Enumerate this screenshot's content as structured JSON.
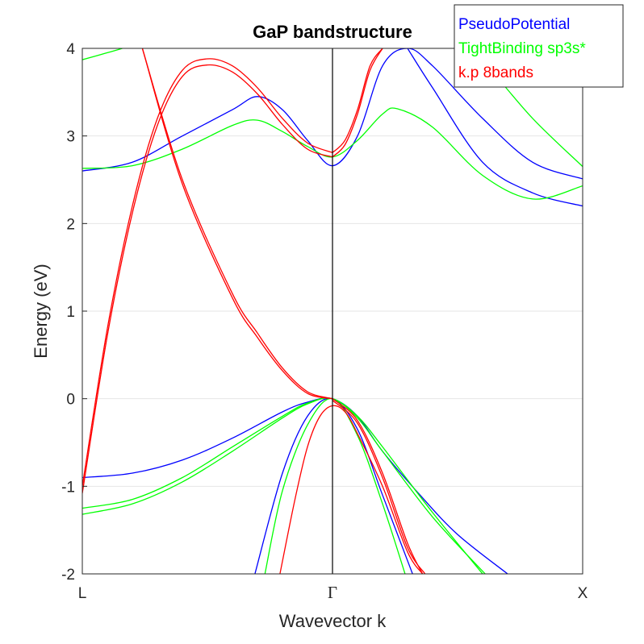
{
  "chart_data": {
    "type": "line",
    "title": "GaP bandstructure",
    "xlabel": "Wavevector k",
    "ylabel": "Energy (eV)",
    "xlim": [
      -1,
      1
    ],
    "ylim": [
      -2,
      4
    ],
    "yticks": [
      -2,
      -1,
      0,
      1,
      2,
      3,
      4
    ],
    "xticks": [
      {
        "value": -1,
        "label": "L"
      },
      {
        "value": 0,
        "label": "Γ"
      },
      {
        "value": 1,
        "label": "X"
      }
    ],
    "grid": "horizontal",
    "legend_position": "top-right",
    "series": [
      {
        "name": "PseudoPotential",
        "color": "#0000ff",
        "bands": [
          {
            "x": [
              -1,
              -0.8,
              -0.6,
              -0.4,
              -0.3,
              -0.2,
              -0.1,
              0,
              0.1,
              0.2,
              0.3,
              0.4,
              0.6,
              0.8,
              1
            ],
            "y": [
              2.6,
              2.7,
              3.0,
              3.3,
              3.45,
              3.3,
              2.95,
              2.66,
              3.0,
              3.8,
              4.0,
              3.8,
              3.2,
              2.7,
              2.51
            ]
          },
          {
            "x": [
              0.3,
              0.4,
              0.6,
              0.8,
              1
            ],
            "y": [
              4.0,
              3.55,
              2.7,
              2.35,
              2.2
            ]
          },
          {
            "x": [
              -1,
              -0.8,
              -0.6,
              -0.4,
              -0.2,
              -0.1,
              0,
              0.1,
              0.2,
              0.35,
              0.5,
              0.7
            ],
            "y": [
              -0.9,
              -0.85,
              -0.7,
              -0.45,
              -0.15,
              -0.04,
              0,
              -0.2,
              -0.6,
              -1.1,
              -1.55,
              -2.0
            ]
          },
          {
            "x": [
              -0.31,
              -0.2,
              -0.1,
              0,
              0.1,
              0.2,
              0.32
            ],
            "y": [
              -2.0,
              -0.85,
              -0.2,
              0,
              -0.35,
              -1.1,
              -2.0
            ]
          }
        ]
      },
      {
        "name": "TightBinding sp3s*",
        "color": "#00ff00",
        "bands": [
          {
            "x": [
              -1,
              -0.8,
              -0.6,
              -0.4,
              -0.3,
              -0.2,
              -0.1,
              0,
              0.1,
              0.2,
              0.26,
              0.4,
              0.6,
              0.8,
              1
            ],
            "y": [
              2.63,
              2.66,
              2.85,
              3.12,
              3.18,
              3.05,
              2.88,
              2.76,
              2.95,
              3.25,
              3.31,
              3.1,
              2.55,
              2.28,
              2.43
            ]
          },
          {
            "x": [
              0.5,
              0.6,
              0.8,
              1
            ],
            "y": [
              4.0,
              3.85,
              3.2,
              2.65
            ]
          },
          {
            "x": [
              -1,
              -0.9,
              -0.84
            ],
            "y": [
              3.87,
              3.95,
              4.0
            ]
          },
          {
            "x": [
              -1,
              -0.8,
              -0.6,
              -0.4,
              -0.2,
              -0.1,
              0,
              0.1,
              0.2,
              0.4,
              0.6
            ],
            "y": [
              -1.25,
              -1.15,
              -0.9,
              -0.55,
              -0.2,
              -0.05,
              0,
              -0.2,
              -0.55,
              -1.3,
              -2.0
            ]
          },
          {
            "x": [
              -1,
              -0.8,
              -0.6,
              -0.4,
              -0.2,
              -0.1,
              0,
              0.1,
              0.2,
              0.4,
              0.61
            ],
            "y": [
              -1.32,
              -1.2,
              -0.95,
              -0.6,
              -0.22,
              -0.06,
              0,
              -0.22,
              -0.6,
              -1.35,
              -2.0
            ]
          },
          {
            "x": [
              -0.27,
              -0.2,
              -0.1,
              0,
              0.1,
              0.2,
              0.29
            ],
            "y": [
              -2.0,
              -1.05,
              -0.3,
              0,
              -0.42,
              -1.2,
              -2.0
            ]
          }
        ]
      },
      {
        "name": "k.p 8bands",
        "color": "#ff0000",
        "bands": [
          {
            "x": [
              -1,
              -0.9,
              -0.8,
              -0.7,
              -0.6,
              -0.5,
              -0.4,
              -0.3,
              -0.2,
              -0.1,
              0
            ],
            "y": [
              -1.0,
              0.8,
              2.2,
              3.2,
              3.75,
              3.88,
              3.8,
              3.55,
              3.2,
              2.92,
              2.81
            ]
          },
          {
            "x": [
              -1,
              -0.9,
              -0.8,
              -0.7,
              -0.6,
              -0.5,
              -0.4,
              -0.3,
              -0.2,
              -0.1,
              0
            ],
            "y": [
              -1.08,
              0.72,
              2.12,
              3.12,
              3.68,
              3.81,
              3.73,
              3.48,
              3.13,
              2.85,
              2.76
            ]
          },
          {
            "x": [
              0,
              0.05,
              0.1,
              0.15,
              0.2
            ],
            "y": [
              2.81,
              2.95,
              3.3,
              3.8,
              4.0
            ]
          },
          {
            "x": [
              0,
              0.05,
              0.1,
              0.15,
              0.2
            ],
            "y": [
              2.76,
              2.9,
              3.25,
              3.75,
              4.0
            ]
          },
          {
            "x": [
              -0.76,
              -0.6,
              -0.4,
              -0.3,
              -0.2,
              -0.1,
              0
            ],
            "y": [
              4.0,
              2.5,
              1.2,
              0.75,
              0.35,
              0.08,
              0
            ]
          },
          {
            "x": [
              -0.76,
              -0.6,
              -0.4,
              -0.3,
              -0.2,
              -0.1,
              0
            ],
            "y": [
              4.0,
              2.45,
              1.15,
              0.7,
              0.32,
              0.06,
              0
            ]
          },
          {
            "x": [
              0,
              0.1,
              0.2,
              0.3,
              0.36
            ],
            "y": [
              0,
              -0.25,
              -0.85,
              -1.65,
              -2.0
            ]
          },
          {
            "x": [
              0,
              0.1,
              0.2,
              0.3,
              0.37
            ],
            "y": [
              -0.02,
              -0.28,
              -0.9,
              -1.7,
              -2.0
            ]
          },
          {
            "x": [
              -0.21,
              -0.15,
              -0.1,
              -0.05,
              0,
              0.05,
              0.1,
              0.2,
              0.3,
              0.36
            ],
            "y": [
              -2.0,
              -1.15,
              -0.55,
              -0.2,
              -0.08,
              -0.15,
              -0.4,
              -1.0,
              -1.75,
              -2.0
            ]
          }
        ]
      }
    ]
  }
}
